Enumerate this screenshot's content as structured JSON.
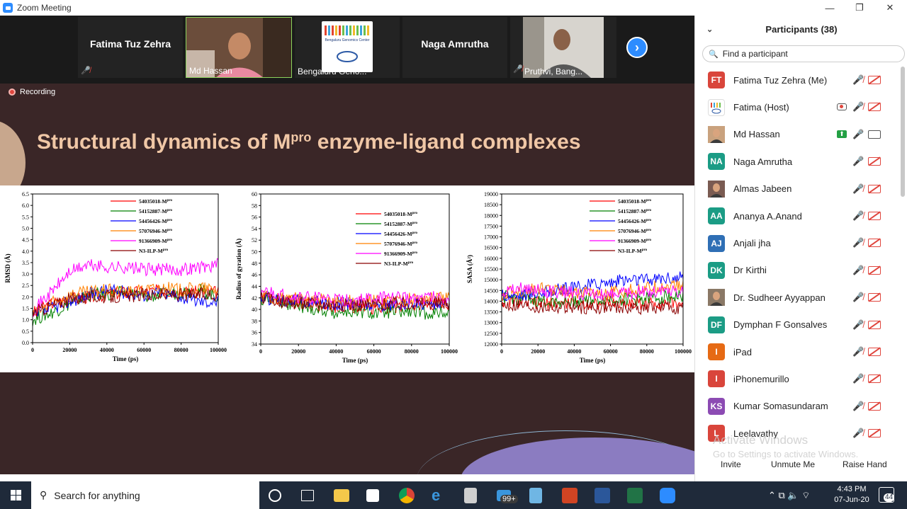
{
  "window": {
    "title": "Zoom Meeting",
    "minimize": "—",
    "restore": "❐",
    "close": "✕"
  },
  "gallery": {
    "tiles": [
      {
        "name": "Fatima Tuz Zehra",
        "type": "name"
      },
      {
        "name": "Md Hassan",
        "type": "video"
      },
      {
        "name": "Bengaluru Geno...",
        "type": "logo",
        "logo_text": "Bengaluru Genomics Center"
      },
      {
        "name": "Naga Amrutha",
        "type": "name"
      },
      {
        "name": "Pruthvi, Bang...",
        "type": "video"
      }
    ],
    "next_icon": "chevron-right-icon"
  },
  "slide": {
    "recording_label": "Recording",
    "title_pre": "Structural dynamics of M",
    "title_sup": "pro",
    "title_post": " enzyme-ligand complexes"
  },
  "legend_suffix": "pro",
  "chart_data": [
    {
      "type": "line",
      "xlabel": "Time (ps)",
      "ylabel": "RMSD (Å)",
      "xlim": [
        0,
        100000
      ],
      "ylim": [
        0.0,
        6.5
      ],
      "xticks": [
        "0",
        "20000",
        "40000",
        "60000",
        "80000",
        "100000"
      ],
      "yticks": [
        "0.0",
        "0.5",
        "1.0",
        "1.5",
        "2.0",
        "2.5",
        "3.0",
        "3.5",
        "4.0",
        "4.5",
        "5.0",
        "5.5",
        "6.0",
        "6.5"
      ],
      "legend_placement": "top-right",
      "series": [
        {
          "name": "54035018-M",
          "color": "#ff0000",
          "x": [
            0,
            10000,
            20000,
            30000,
            40000,
            50000,
            60000,
            70000,
            80000,
            90000,
            100000
          ],
          "y": [
            1.3,
            1.7,
            1.9,
            2.0,
            2.1,
            2.2,
            2.2,
            2.3,
            2.2,
            2.2,
            2.2
          ]
        },
        {
          "name": "54152887-M",
          "color": "#008000",
          "x": [
            0,
            10000,
            20000,
            30000,
            40000,
            50000,
            60000,
            70000,
            80000,
            90000,
            100000
          ],
          "y": [
            1.0,
            1.3,
            1.7,
            2.1,
            2.1,
            2.2,
            2.0,
            2.1,
            2.2,
            2.3,
            2.0
          ]
        },
        {
          "name": "54456426-M",
          "color": "#0000ff",
          "x": [
            0,
            10000,
            20000,
            30000,
            40000,
            50000,
            60000,
            70000,
            80000,
            90000,
            100000
          ],
          "y": [
            1.1,
            1.5,
            1.8,
            2.1,
            2.3,
            2.2,
            2.1,
            2.2,
            2.0,
            1.8,
            1.8
          ]
        },
        {
          "name": "57076946-M",
          "color": "#ff8000",
          "x": [
            0,
            10000,
            20000,
            30000,
            40000,
            50000,
            60000,
            70000,
            80000,
            90000,
            100000
          ],
          "y": [
            1.2,
            1.7,
            2.1,
            2.2,
            2.3,
            2.2,
            2.3,
            2.4,
            2.3,
            2.4,
            2.3
          ]
        },
        {
          "name": "91366909-M",
          "color": "#ff00ff",
          "x": [
            0,
            10000,
            20000,
            30000,
            40000,
            50000,
            60000,
            70000,
            80000,
            90000,
            100000
          ],
          "y": [
            1.4,
            2.2,
            3.1,
            3.4,
            3.3,
            3.3,
            3.2,
            3.2,
            3.2,
            3.3,
            3.4
          ]
        },
        {
          "name": "N3-ILP-M",
          "color": "#8b0000",
          "x": [
            0,
            10000,
            20000,
            30000,
            40000,
            50000,
            60000,
            70000,
            80000,
            90000,
            100000
          ],
          "y": [
            1.3,
            1.6,
            1.9,
            2.0,
            2.0,
            2.0,
            2.1,
            2.1,
            2.1,
            2.1,
            2.1
          ]
        }
      ]
    },
    {
      "type": "line",
      "xlabel": "Time (ps)",
      "ylabel": "Radius of gyration (Å)",
      "xlim": [
        0,
        100000
      ],
      "ylim": [
        34,
        60
      ],
      "xticks": [
        "0",
        "20000",
        "40000",
        "60000",
        "80000",
        "100000"
      ],
      "yticks": [
        "34",
        "36",
        "38",
        "40",
        "42",
        "44",
        "46",
        "48",
        "50",
        "52",
        "54",
        "56",
        "58",
        "60"
      ],
      "legend_placement": "top-right",
      "series": [
        {
          "name": "54035018-M",
          "color": "#ff0000",
          "x": [
            0,
            10000,
            20000,
            30000,
            40000,
            50000,
            60000,
            70000,
            80000,
            90000,
            100000
          ],
          "y": [
            42,
            41.5,
            41,
            40.8,
            40.5,
            40.5,
            40.3,
            40.5,
            40.8,
            41,
            41
          ]
        },
        {
          "name": "54152887-M",
          "color": "#008000",
          "x": [
            0,
            10000,
            20000,
            30000,
            40000,
            50000,
            60000,
            70000,
            80000,
            90000,
            100000
          ],
          "y": [
            42,
            41.5,
            40.5,
            40,
            39.5,
            39.5,
            39.3,
            39.5,
            39.5,
            39.3,
            39.5
          ]
        },
        {
          "name": "54456426-M",
          "color": "#0000ff",
          "x": [
            0,
            10000,
            20000,
            30000,
            40000,
            50000,
            60000,
            70000,
            80000,
            90000,
            100000
          ],
          "y": [
            42,
            41.8,
            41.5,
            41.2,
            41,
            41,
            40.8,
            40.8,
            41,
            41.2,
            41
          ]
        },
        {
          "name": "57076946-M",
          "color": "#ff8000",
          "x": [
            0,
            10000,
            20000,
            30000,
            40000,
            50000,
            60000,
            70000,
            80000,
            90000,
            100000
          ],
          "y": [
            42.5,
            42,
            41.8,
            41.5,
            41.5,
            41.5,
            41.5,
            41.8,
            41.8,
            42,
            42
          ]
        },
        {
          "name": "91366909-M",
          "color": "#ff00ff",
          "x": [
            0,
            10000,
            20000,
            30000,
            40000,
            50000,
            60000,
            70000,
            80000,
            90000,
            100000
          ],
          "y": [
            43,
            42.5,
            42,
            42,
            41.5,
            41.5,
            41.8,
            42,
            42,
            42.2,
            42
          ]
        },
        {
          "name": "N3-ILP-M",
          "color": "#8b0000",
          "x": [
            0,
            10000,
            20000,
            30000,
            40000,
            50000,
            60000,
            70000,
            80000,
            90000,
            100000
          ],
          "y": [
            42,
            41.5,
            41,
            41,
            40.8,
            40.8,
            40.8,
            41,
            41,
            41,
            41
          ]
        }
      ]
    },
    {
      "type": "line",
      "xlabel": "Time (ps)",
      "ylabel": "SASA (Å²)",
      "xlim": [
        0,
        100000
      ],
      "ylim": [
        12000,
        19000
      ],
      "xticks": [
        "0",
        "20000",
        "40000",
        "60000",
        "80000",
        "100000"
      ],
      "yticks": [
        "12000",
        "12500",
        "13000",
        "13500",
        "14000",
        "14500",
        "15000",
        "15500",
        "16000",
        "16500",
        "17000",
        "17500",
        "18000",
        "18500",
        "19000"
      ],
      "legend_placement": "top-right",
      "series": [
        {
          "name": "54035018-M",
          "color": "#ff0000",
          "x": [
            0,
            10000,
            20000,
            30000,
            40000,
            50000,
            60000,
            70000,
            80000,
            90000,
            100000
          ],
          "y": [
            14000,
            14000,
            13900,
            13900,
            13900,
            13900,
            13900,
            13900,
            13900,
            13900,
            13900
          ]
        },
        {
          "name": "54152887-M",
          "color": "#008000",
          "x": [
            0,
            10000,
            20000,
            30000,
            40000,
            50000,
            60000,
            70000,
            80000,
            90000,
            100000
          ],
          "y": [
            14200,
            14100,
            14000,
            14000,
            14000,
            14100,
            14100,
            14100,
            14100,
            14200,
            14200
          ]
        },
        {
          "name": "54456426-M",
          "color": "#0000ff",
          "x": [
            0,
            10000,
            20000,
            30000,
            40000,
            50000,
            60000,
            70000,
            80000,
            90000,
            100000
          ],
          "y": [
            14300,
            14300,
            14400,
            14500,
            14600,
            14800,
            14900,
            15000,
            15000,
            15100,
            15100
          ]
        },
        {
          "name": "57076946-M",
          "color": "#ff8000",
          "x": [
            0,
            10000,
            20000,
            30000,
            40000,
            50000,
            60000,
            70000,
            80000,
            90000,
            100000
          ],
          "y": [
            14300,
            14500,
            14600,
            14500,
            14400,
            14400,
            14400,
            14500,
            14600,
            14700,
            14700
          ]
        },
        {
          "name": "91366909-M",
          "color": "#ff00ff",
          "x": [
            0,
            10000,
            20000,
            30000,
            40000,
            50000,
            60000,
            70000,
            80000,
            90000,
            100000
          ],
          "y": [
            14500,
            14600,
            14500,
            14400,
            14400,
            14300,
            14300,
            14400,
            14400,
            14500,
            14400
          ]
        },
        {
          "name": "N3-ILP-M",
          "color": "#8b0000",
          "x": [
            0,
            10000,
            20000,
            30000,
            40000,
            50000,
            60000,
            70000,
            80000,
            90000,
            100000
          ],
          "y": [
            13800,
            13800,
            13700,
            13700,
            13700,
            13700,
            13700,
            13700,
            13700,
            13700,
            13700
          ]
        }
      ]
    }
  ],
  "participants": {
    "header": "Participants (38)",
    "search_placeholder": "Find a participant",
    "list": [
      {
        "initials": "FT",
        "name": "Fatima Tuz Zehra (Me)",
        "color": "#d9453b",
        "avatar": "initials",
        "mic": "muted",
        "cam": "off"
      },
      {
        "initials": "",
        "name": "Fatima (Host)",
        "color": "#ffffff",
        "avatar": "logo",
        "mic": "muted",
        "cam": "off",
        "extra": "recording-icon"
      },
      {
        "initials": "",
        "name": "Md Hassan",
        "color": "#c9a27e",
        "avatar": "photo",
        "mic": "on",
        "cam": "on",
        "extra": "share-screen-icon"
      },
      {
        "initials": "NA",
        "name": "Naga Amrutha",
        "color": "#1b9c85",
        "avatar": "initials",
        "mic": "on",
        "cam": "off"
      },
      {
        "initials": "",
        "name": "Almas Jabeen",
        "color": "#7a5b52",
        "avatar": "photo",
        "mic": "muted",
        "cam": "off"
      },
      {
        "initials": "AA",
        "name": "Ananya A.Anand",
        "color": "#1b9c85",
        "avatar": "initials",
        "mic": "muted",
        "cam": "off"
      },
      {
        "initials": "AJ",
        "name": "Anjali jha",
        "color": "#2f6fb5",
        "avatar": "initials",
        "mic": "muted",
        "cam": "off"
      },
      {
        "initials": "DK",
        "name": "Dr Kirthi",
        "color": "#1b9c85",
        "avatar": "initials",
        "mic": "muted",
        "cam": "off"
      },
      {
        "initials": "",
        "name": "Dr. Sudheer Ayyappan",
        "color": "#8a7866",
        "avatar": "photo",
        "mic": "muted",
        "cam": "off"
      },
      {
        "initials": "DF",
        "name": "Dymphan F Gonsalves",
        "color": "#1b9c85",
        "avatar": "initials",
        "mic": "muted",
        "cam": "off"
      },
      {
        "initials": "I",
        "name": "iPad",
        "color": "#e66a14",
        "avatar": "initials",
        "mic": "muted",
        "cam": "off"
      },
      {
        "initials": "I",
        "name": "iPhonemurillo",
        "color": "#d9453b",
        "avatar": "initials",
        "mic": "muted",
        "cam": "off"
      },
      {
        "initials": "KS",
        "name": "Kumar Somasundaram",
        "color": "#8c4bb3",
        "avatar": "initials",
        "mic": "muted",
        "cam": "off"
      },
      {
        "initials": "L",
        "name": "Leelavathy",
        "color": "#d9453b",
        "avatar": "initials",
        "mic": "muted",
        "cam": "off"
      }
    ],
    "buttons": {
      "invite": "Invite",
      "unmute": "Unmute Me",
      "raise_hand": "Raise Hand"
    }
  },
  "watermark": {
    "line1": "Activate Windows",
    "line2": "Go to Settings to activate Windows."
  },
  "taskbar": {
    "search_placeholder": "Search for anything",
    "mail_badge": "99+",
    "time": "4:43 PM",
    "date": "07-Jun-20",
    "notif_count": "44"
  }
}
